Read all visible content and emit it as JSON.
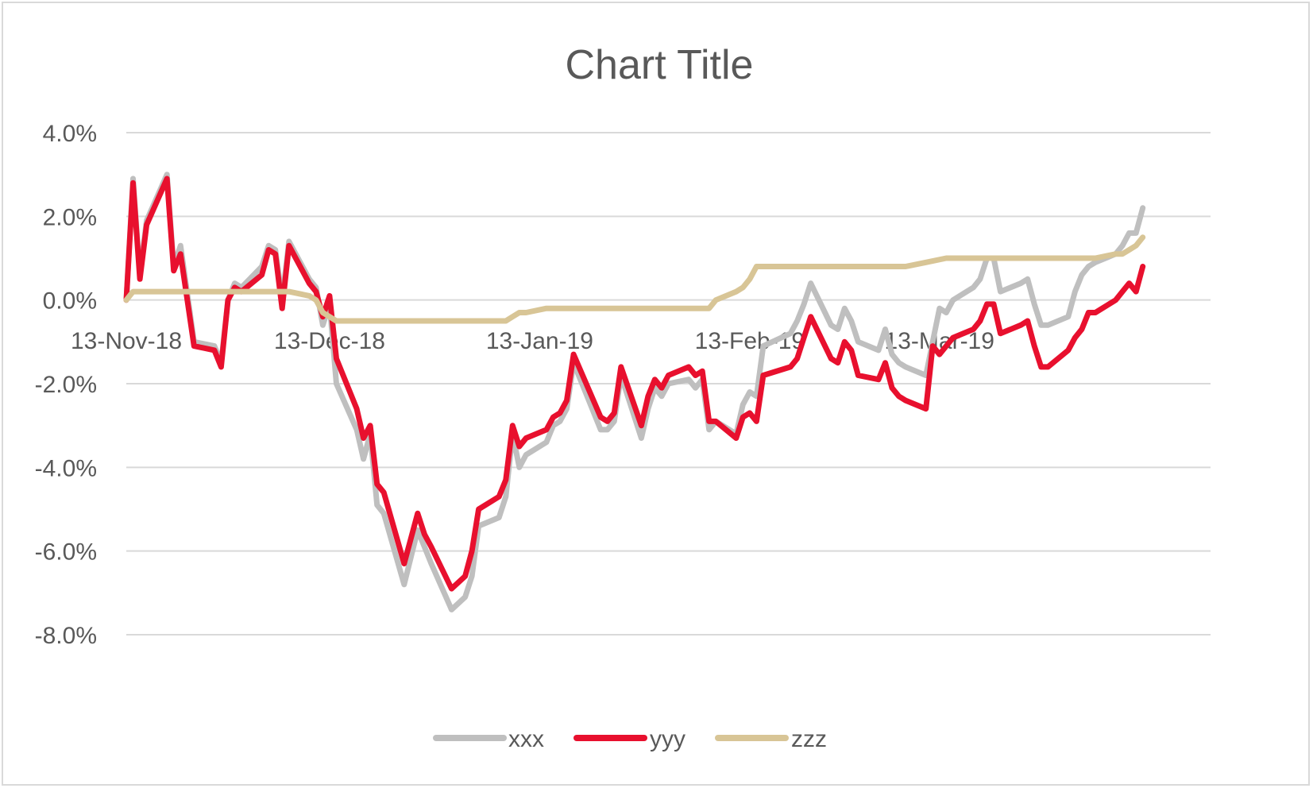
{
  "chart_data": {
    "type": "line",
    "title": "Chart Title",
    "xlabel": "",
    "ylabel": "",
    "x_ticks": [
      "13-Nov-18",
      "13-Dec-18",
      "13-Jan-19",
      "13-Feb-19",
      "13-Mar-19"
    ],
    "xlim": [
      "2018-11-13",
      "2019-04-22"
    ],
    "y_ticks": [
      "4.0%",
      "2.0%",
      "0.0%",
      "-2.0%",
      "-4.0%",
      "-6.0%",
      "-8.0%"
    ],
    "ylim": [
      -8,
      4
    ],
    "grid": true,
    "legend_position": "bottom",
    "series": [
      {
        "name": "xxx",
        "color": "#bfbfbf",
        "points": [
          [
            "2018-11-13",
            0.0
          ],
          [
            "2018-11-14",
            2.9
          ],
          [
            "2018-11-15",
            0.6
          ],
          [
            "2018-11-16",
            1.9
          ],
          [
            "2018-11-19",
            3.0
          ],
          [
            "2018-11-20",
            0.8
          ],
          [
            "2018-11-21",
            1.3
          ],
          [
            "2018-11-23",
            -1.0
          ],
          [
            "2018-11-26",
            -1.1
          ],
          [
            "2018-11-27",
            -1.5
          ],
          [
            "2018-11-28",
            0.0
          ],
          [
            "2018-11-29",
            0.4
          ],
          [
            "2018-11-30",
            0.3
          ],
          [
            "2018-12-03",
            0.8
          ],
          [
            "2018-12-04",
            1.3
          ],
          [
            "2018-12-05",
            1.2
          ],
          [
            "2018-12-06",
            0.0
          ],
          [
            "2018-12-07",
            1.4
          ],
          [
            "2018-12-10",
            0.5
          ],
          [
            "2018-12-11",
            0.3
          ],
          [
            "2018-12-12",
            -0.6
          ],
          [
            "2018-12-13",
            -0.1
          ],
          [
            "2018-12-14",
            -2.0
          ],
          [
            "2018-12-17",
            -3.1
          ],
          [
            "2018-12-18",
            -3.8
          ],
          [
            "2018-12-19",
            -3.2
          ],
          [
            "2018-12-20",
            -4.9
          ],
          [
            "2018-12-21",
            -5.1
          ],
          [
            "2018-12-24",
            -6.8
          ],
          [
            "2018-12-26",
            -5.5
          ],
          [
            "2018-12-27",
            -5.9
          ],
          [
            "2018-12-28",
            -6.3
          ],
          [
            "2018-12-31",
            -7.4
          ],
          [
            "2019-01-02",
            -7.1
          ],
          [
            "2019-01-03",
            -6.6
          ],
          [
            "2019-01-04",
            -5.4
          ],
          [
            "2019-01-07",
            -5.2
          ],
          [
            "2019-01-08",
            -4.7
          ],
          [
            "2019-01-09",
            -3.2
          ],
          [
            "2019-01-10",
            -4.0
          ],
          [
            "2019-01-11",
            -3.7
          ],
          [
            "2019-01-14",
            -3.4
          ],
          [
            "2019-01-15",
            -3.0
          ],
          [
            "2019-01-16",
            -2.9
          ],
          [
            "2019-01-17",
            -2.6
          ],
          [
            "2019-01-18",
            -1.5
          ],
          [
            "2019-01-22",
            -3.1
          ],
          [
            "2019-01-23",
            -3.1
          ],
          [
            "2019-01-24",
            -2.9
          ],
          [
            "2019-01-25",
            -1.8
          ],
          [
            "2019-01-28",
            -3.3
          ],
          [
            "2019-01-29",
            -2.6
          ],
          [
            "2019-01-30",
            -2.1
          ],
          [
            "2019-01-31",
            -2.3
          ],
          [
            "2019-02-01",
            -2.0
          ],
          [
            "2019-02-04",
            -1.9
          ],
          [
            "2019-02-05",
            -2.1
          ],
          [
            "2019-02-06",
            -1.9
          ],
          [
            "2019-02-07",
            -3.1
          ],
          [
            "2019-02-08",
            -2.9
          ],
          [
            "2019-02-11",
            -3.2
          ],
          [
            "2019-02-12",
            -2.5
          ],
          [
            "2019-02-13",
            -2.2
          ],
          [
            "2019-02-14",
            -2.3
          ],
          [
            "2019-02-15",
            -1.1
          ],
          [
            "2019-02-19",
            -0.8
          ],
          [
            "2019-02-20",
            -0.5
          ],
          [
            "2019-02-21",
            -0.1
          ],
          [
            "2019-02-22",
            0.4
          ],
          [
            "2019-02-25",
            -0.6
          ],
          [
            "2019-02-26",
            -0.7
          ],
          [
            "2019-02-27",
            -0.2
          ],
          [
            "2019-02-28",
            -0.5
          ],
          [
            "2019-03-01",
            -1.0
          ],
          [
            "2019-03-04",
            -1.2
          ],
          [
            "2019-03-05",
            -0.7
          ],
          [
            "2019-03-06",
            -1.3
          ],
          [
            "2019-03-07",
            -1.5
          ],
          [
            "2019-03-08",
            -1.6
          ],
          [
            "2019-03-11",
            -1.8
          ],
          [
            "2019-03-12",
            -1.0
          ],
          [
            "2019-03-13",
            -0.2
          ],
          [
            "2019-03-14",
            -0.3
          ],
          [
            "2019-03-15",
            0.0
          ],
          [
            "2019-03-18",
            0.3
          ],
          [
            "2019-03-19",
            0.5
          ],
          [
            "2019-03-20",
            1.0
          ],
          [
            "2019-03-21",
            1.0
          ],
          [
            "2019-03-22",
            0.2
          ],
          [
            "2019-03-25",
            0.4
          ],
          [
            "2019-03-26",
            0.5
          ],
          [
            "2019-03-27",
            -0.1
          ],
          [
            "2019-03-28",
            -0.6
          ],
          [
            "2019-03-29",
            -0.6
          ],
          [
            "2019-04-01",
            -0.4
          ],
          [
            "2019-04-02",
            0.2
          ],
          [
            "2019-04-03",
            0.6
          ],
          [
            "2019-04-04",
            0.8
          ],
          [
            "2019-04-05",
            0.9
          ],
          [
            "2019-04-08",
            1.1
          ],
          [
            "2019-04-09",
            1.3
          ],
          [
            "2019-04-10",
            1.6
          ],
          [
            "2019-04-11",
            1.6
          ],
          [
            "2019-04-12",
            2.2
          ]
        ]
      },
      {
        "name": "yyy",
        "color": "#e8102e",
        "points": [
          [
            "2018-11-13",
            0.0
          ],
          [
            "2018-11-14",
            2.8
          ],
          [
            "2018-11-15",
            0.5
          ],
          [
            "2018-11-16",
            1.8
          ],
          [
            "2018-11-19",
            2.9
          ],
          [
            "2018-11-20",
            0.7
          ],
          [
            "2018-11-21",
            1.1
          ],
          [
            "2018-11-23",
            -1.1
          ],
          [
            "2018-11-26",
            -1.2
          ],
          [
            "2018-11-27",
            -1.6
          ],
          [
            "2018-11-28",
            0.0
          ],
          [
            "2018-11-29",
            0.3
          ],
          [
            "2018-11-30",
            0.2
          ],
          [
            "2018-12-03",
            0.6
          ],
          [
            "2018-12-04",
            1.2
          ],
          [
            "2018-12-05",
            1.1
          ],
          [
            "2018-12-06",
            -0.2
          ],
          [
            "2018-12-07",
            1.3
          ],
          [
            "2018-12-10",
            0.4
          ],
          [
            "2018-12-11",
            0.2
          ],
          [
            "2018-12-12",
            -0.4
          ],
          [
            "2018-12-13",
            0.1
          ],
          [
            "2018-12-14",
            -1.4
          ],
          [
            "2018-12-17",
            -2.6
          ],
          [
            "2018-12-18",
            -3.3
          ],
          [
            "2018-12-19",
            -3.0
          ],
          [
            "2018-12-20",
            -4.4
          ],
          [
            "2018-12-21",
            -4.6
          ],
          [
            "2018-12-24",
            -6.3
          ],
          [
            "2018-12-26",
            -5.1
          ],
          [
            "2018-12-27",
            -5.6
          ],
          [
            "2018-12-28",
            -5.9
          ],
          [
            "2018-12-31",
            -6.9
          ],
          [
            "2019-01-02",
            -6.6
          ],
          [
            "2019-01-03",
            -6.0
          ],
          [
            "2019-01-04",
            -5.0
          ],
          [
            "2019-01-07",
            -4.7
          ],
          [
            "2019-01-08",
            -4.3
          ],
          [
            "2019-01-09",
            -3.0
          ],
          [
            "2019-01-10",
            -3.5
          ],
          [
            "2019-01-11",
            -3.3
          ],
          [
            "2019-01-14",
            -3.1
          ],
          [
            "2019-01-15",
            -2.8
          ],
          [
            "2019-01-16",
            -2.7
          ],
          [
            "2019-01-17",
            -2.4
          ],
          [
            "2019-01-18",
            -1.3
          ],
          [
            "2019-01-22",
            -2.8
          ],
          [
            "2019-01-23",
            -2.9
          ],
          [
            "2019-01-24",
            -2.7
          ],
          [
            "2019-01-25",
            -1.6
          ],
          [
            "2019-01-28",
            -3.0
          ],
          [
            "2019-01-29",
            -2.3
          ],
          [
            "2019-01-30",
            -1.9
          ],
          [
            "2019-01-31",
            -2.1
          ],
          [
            "2019-02-01",
            -1.8
          ],
          [
            "2019-02-04",
            -1.6
          ],
          [
            "2019-02-05",
            -1.8
          ],
          [
            "2019-02-06",
            -1.7
          ],
          [
            "2019-02-07",
            -2.9
          ],
          [
            "2019-02-08",
            -2.9
          ],
          [
            "2019-02-11",
            -3.3
          ],
          [
            "2019-02-12",
            -2.8
          ],
          [
            "2019-02-13",
            -2.7
          ],
          [
            "2019-02-14",
            -2.9
          ],
          [
            "2019-02-15",
            -1.8
          ],
          [
            "2019-02-19",
            -1.6
          ],
          [
            "2019-02-20",
            -1.4
          ],
          [
            "2019-02-21",
            -0.9
          ],
          [
            "2019-02-22",
            -0.4
          ],
          [
            "2019-02-25",
            -1.4
          ],
          [
            "2019-02-26",
            -1.5
          ],
          [
            "2019-02-27",
            -1.0
          ],
          [
            "2019-02-28",
            -1.2
          ],
          [
            "2019-03-01",
            -1.8
          ],
          [
            "2019-03-04",
            -1.9
          ],
          [
            "2019-03-05",
            -1.5
          ],
          [
            "2019-03-06",
            -2.1
          ],
          [
            "2019-03-07",
            -2.3
          ],
          [
            "2019-03-08",
            -2.4
          ],
          [
            "2019-03-11",
            -2.6
          ],
          [
            "2019-03-12",
            -1.1
          ],
          [
            "2019-03-13",
            -1.3
          ],
          [
            "2019-03-14",
            -1.1
          ],
          [
            "2019-03-15",
            -0.9
          ],
          [
            "2019-03-18",
            -0.7
          ],
          [
            "2019-03-19",
            -0.5
          ],
          [
            "2019-03-20",
            -0.1
          ],
          [
            "2019-03-21",
            -0.1
          ],
          [
            "2019-03-22",
            -0.8
          ],
          [
            "2019-03-25",
            -0.6
          ],
          [
            "2019-03-26",
            -0.5
          ],
          [
            "2019-03-27",
            -1.1
          ],
          [
            "2019-03-28",
            -1.6
          ],
          [
            "2019-03-29",
            -1.6
          ],
          [
            "2019-04-01",
            -1.2
          ],
          [
            "2019-04-02",
            -0.9
          ],
          [
            "2019-04-03",
            -0.7
          ],
          [
            "2019-04-04",
            -0.3
          ],
          [
            "2019-04-05",
            -0.3
          ],
          [
            "2019-04-08",
            0.0
          ],
          [
            "2019-04-09",
            0.2
          ],
          [
            "2019-04-10",
            0.4
          ],
          [
            "2019-04-11",
            0.2
          ],
          [
            "2019-04-12",
            0.8
          ]
        ]
      },
      {
        "name": "zzz",
        "color": "#d8c596",
        "points": [
          [
            "2018-11-13",
            0.0
          ],
          [
            "2018-11-14",
            0.2
          ],
          [
            "2018-11-20",
            0.2
          ],
          [
            "2018-12-04",
            0.2
          ],
          [
            "2018-12-07",
            0.2
          ],
          [
            "2018-12-10",
            0.1
          ],
          [
            "2018-12-11",
            0.0
          ],
          [
            "2018-12-12",
            -0.3
          ],
          [
            "2018-12-13",
            -0.4
          ],
          [
            "2018-12-14",
            -0.5
          ],
          [
            "2018-12-17",
            -0.5
          ],
          [
            "2018-12-19",
            -0.5
          ],
          [
            "2018-12-20",
            -0.5
          ],
          [
            "2018-12-28",
            -0.5
          ],
          [
            "2019-01-02",
            -0.5
          ],
          [
            "2019-01-07",
            -0.5
          ],
          [
            "2019-01-08",
            -0.5
          ],
          [
            "2019-01-09",
            -0.4
          ],
          [
            "2019-01-10",
            -0.3
          ],
          [
            "2019-01-11",
            -0.3
          ],
          [
            "2019-01-14",
            -0.2
          ],
          [
            "2019-01-18",
            -0.2
          ],
          [
            "2019-02-01",
            -0.2
          ],
          [
            "2019-02-07",
            -0.2
          ],
          [
            "2019-02-08",
            0.0
          ],
          [
            "2019-02-11",
            0.2
          ],
          [
            "2019-02-12",
            0.3
          ],
          [
            "2019-02-13",
            0.5
          ],
          [
            "2019-02-14",
            0.8
          ],
          [
            "2019-02-15",
            0.8
          ],
          [
            "2019-02-22",
            0.8
          ],
          [
            "2019-03-01",
            0.8
          ],
          [
            "2019-03-07",
            0.8
          ],
          [
            "2019-03-08",
            0.8
          ],
          [
            "2019-03-11",
            0.9
          ],
          [
            "2019-03-14",
            1.0
          ],
          [
            "2019-03-15",
            1.0
          ],
          [
            "2019-03-22",
            1.0
          ],
          [
            "2019-04-01",
            1.0
          ],
          [
            "2019-04-05",
            1.0
          ],
          [
            "2019-04-08",
            1.1
          ],
          [
            "2019-04-09",
            1.1
          ],
          [
            "2019-04-10",
            1.2
          ],
          [
            "2019-04-11",
            1.3
          ],
          [
            "2019-04-12",
            1.5
          ]
        ]
      }
    ]
  }
}
